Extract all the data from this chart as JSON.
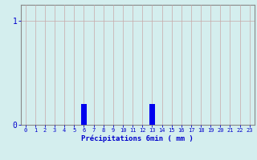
{
  "hours": [
    0,
    1,
    2,
    3,
    4,
    5,
    6,
    7,
    8,
    9,
    10,
    11,
    12,
    13,
    14,
    15,
    16,
    17,
    18,
    19,
    20,
    21,
    22,
    23
  ],
  "values": [
    0,
    0,
    0,
    0,
    0,
    0,
    0.2,
    0,
    0,
    0,
    0,
    0,
    0,
    0.2,
    0,
    0,
    0,
    0,
    0,
    0,
    0,
    0,
    0,
    0
  ],
  "bar_color": "#0000ee",
  "background_color": "#d4eeee",
  "grid_color": "#c8a8a8",
  "xlabel": "Précipitations 6min ( mm )",
  "xlabel_color": "#0000cc",
  "tick_color": "#0000cc",
  "yticks": [
    0,
    1
  ],
  "ylim": [
    0,
    1.15
  ],
  "xlim": [
    -0.5,
    23.5
  ],
  "bar_width": 0.6,
  "spine_color": "#888888",
  "xtick_fontsize": 5.0,
  "ytick_fontsize": 7.0,
  "xlabel_fontsize": 6.5
}
